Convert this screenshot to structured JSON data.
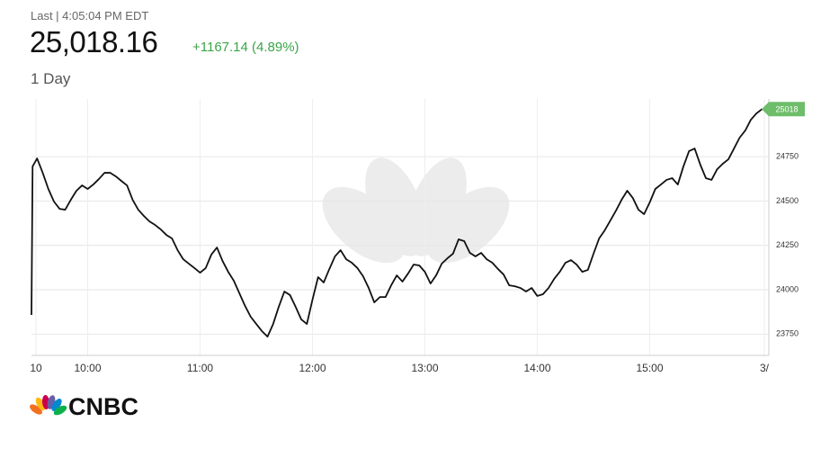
{
  "header": {
    "timestamp": "Last | 4:05:04 PM EDT",
    "price": "25,018.16",
    "change": "+1167.14 (4.89%)",
    "range": "1 Day"
  },
  "logo": "CNBC",
  "chart_data": {
    "type": "line",
    "x": [
      9.5,
      9.51,
      9.55,
      9.6,
      9.65,
      9.7,
      9.75,
      9.8,
      9.85,
      9.9,
      9.95,
      10,
      10.05,
      10.1,
      10.15,
      10.2,
      10.25,
      10.3,
      10.35,
      10.4,
      10.45,
      10.5,
      10.55,
      10.6,
      10.65,
      10.7,
      10.75,
      10.8,
      10.85,
      10.9,
      10.95,
      11,
      11.05,
      11.1,
      11.15,
      11.2,
      11.25,
      11.3,
      11.35,
      11.4,
      11.45,
      11.5,
      11.55,
      11.6,
      11.65,
      11.7,
      11.75,
      11.8,
      11.85,
      11.9,
      11.95,
      12,
      12.05,
      12.1,
      12.15,
      12.2,
      12.25,
      12.3,
      12.35,
      12.4,
      12.45,
      12.5,
      12.55,
      12.6,
      12.65,
      12.7,
      12.75,
      12.8,
      12.85,
      12.9,
      12.95,
      13,
      13.05,
      13.1,
      13.15,
      13.2,
      13.25,
      13.3,
      13.35,
      13.4,
      13.45,
      13.5,
      13.55,
      13.6,
      13.65,
      13.7,
      13.75,
      13.8,
      13.85,
      13.9,
      13.95,
      14,
      14.05,
      14.1,
      14.15,
      14.2,
      14.25,
      14.3,
      14.35,
      14.4,
      14.45,
      14.5,
      14.55,
      14.6,
      14.65,
      14.7,
      14.75,
      14.8,
      14.85,
      14.9,
      14.95,
      15,
      15.05,
      15.1,
      15.15,
      15.2,
      15.25,
      15.3,
      15.35,
      15.4,
      15.45,
      15.5,
      15.55,
      15.6,
      15.65,
      15.7,
      15.75,
      15.8,
      15.85,
      15.9,
      15.95,
      16
    ],
    "series": [
      {
        "color": "#111111",
        "values": [
          23858,
          24695,
          24740,
          24659,
          24568,
          24497,
          24456,
          24451,
          24507,
          24558,
          24588,
          24568,
          24593,
          24624,
          24659,
          24659,
          24639,
          24613,
          24588,
          24507,
          24451,
          24416,
          24385,
          24365,
          24340,
          24309,
          24289,
          24223,
          24172,
          24147,
          24122,
          24096,
          24122,
          24198,
          24238,
          24162,
          24101,
          24051,
          23980,
          23909,
          23848,
          23807,
          23767,
          23736,
          23807,
          23904,
          23990,
          23970,
          23904,
          23833,
          23807,
          23944,
          24071,
          24041,
          24117,
          24188,
          24223,
          24172,
          24152,
          24122,
          24076,
          24010,
          23929,
          23959,
          23959,
          24025,
          24081,
          24046,
          24091,
          24142,
          24137,
          24101,
          24035,
          24081,
          24147,
          24177,
          24203,
          24284,
          24274,
          24208,
          24188,
          24208,
          24172,
          24152,
          24117,
          24086,
          24025,
          24020,
          24010,
          23990,
          24010,
          23965,
          23975,
          24010,
          24061,
          24101,
          24152,
          24167,
          24142,
          24101,
          24112,
          24203,
          24289,
          24335,
          24390,
          24446,
          24507,
          24558,
          24517,
          24451,
          24426,
          24492,
          24568,
          24593,
          24619,
          24629,
          24593,
          24695,
          24781,
          24796,
          24705,
          24629,
          24619,
          24679,
          24710,
          24735,
          24796,
          24857,
          24897,
          24958,
          24994,
          25018.16
        ]
      }
    ],
    "xlim": [
      9.5,
      16.06
    ],
    "xticks": [
      {
        "value": 9.54,
        "label": "10"
      },
      {
        "value": 10,
        "label": "10:00"
      },
      {
        "value": 11,
        "label": "11:00"
      },
      {
        "value": 12,
        "label": "12:00"
      },
      {
        "value": 13,
        "label": "13:00"
      },
      {
        "value": 14,
        "label": "14:00"
      },
      {
        "value": 15,
        "label": "15:00"
      },
      {
        "value": 16.02,
        "label": "3/"
      }
    ],
    "ylim": [
      23630,
      25075
    ],
    "yticks": [
      23750,
      24000,
      24250,
      24500,
      24750
    ],
    "grid": true,
    "last_marker": {
      "value": 25018.16,
      "label": "25018",
      "color": "#6dbd6a"
    }
  }
}
